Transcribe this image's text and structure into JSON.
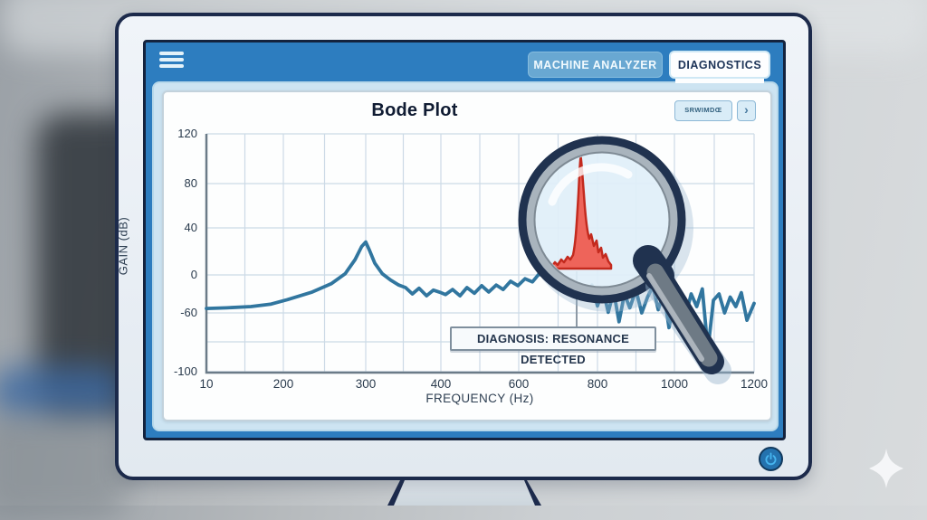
{
  "window": {
    "tabs": [
      {
        "label": "MACHINE ANALYZER",
        "active": false
      },
      {
        "label": "DIAGNOSTICS",
        "active": true
      }
    ]
  },
  "toolbar": {
    "mini_button_label": "SRWIMDŒ",
    "chevron": "›"
  },
  "icons": {
    "menu": "hamburger-menu",
    "power": "power",
    "sparkle": "four-point-sparkle",
    "magnifier": "magnifying-glass",
    "chevron_right": "chevron-right"
  },
  "colors": {
    "screen_blue": "#2d7dbf",
    "bezel_navy": "#1c2a4b",
    "panel_blue": "#cde4f2",
    "curve_blue": "#31769f",
    "alert_red": "#e84a3e",
    "lens_fill": "#e3f1fa"
  },
  "chart_data": {
    "type": "line",
    "title": "Bode Plot",
    "xlabel": "FREQUENCY (Hz)",
    "ylabel": "GAIN (dB)",
    "x_ticks": [
      10,
      200,
      300,
      400,
      600,
      800,
      1000,
      1200
    ],
    "y_ticks": [
      120,
      80,
      40,
      0,
      -60,
      -100
    ],
    "xlim": [
      10,
      1200
    ],
    "ylim": [
      -100,
      120
    ],
    "grid": true,
    "series": [
      {
        "name": "Gain",
        "color": "#31769f",
        "points": [
          [
            10,
            -53
          ],
          [
            60,
            -52
          ],
          [
            120,
            -50
          ],
          [
            170,
            -46
          ],
          [
            205,
            -39
          ],
          [
            235,
            -27
          ],
          [
            258,
            -14
          ],
          [
            275,
            1
          ],
          [
            287,
            13
          ],
          [
            295,
            24
          ],
          [
            300,
            28
          ],
          [
            305,
            21
          ],
          [
            312,
            10
          ],
          [
            322,
            1
          ],
          [
            333,
            -8
          ],
          [
            344,
            -16
          ],
          [
            353,
            -20
          ],
          [
            362,
            -30
          ],
          [
            371,
            -21
          ],
          [
            381,
            -33
          ],
          [
            390,
            -24
          ],
          [
            400,
            -28
          ],
          [
            412,
            -31
          ],
          [
            430,
            -23
          ],
          [
            449,
            -33
          ],
          [
            467,
            -20
          ],
          [
            486,
            -29
          ],
          [
            505,
            -17
          ],
          [
            523,
            -27
          ],
          [
            542,
            -16
          ],
          [
            560,
            -23
          ],
          [
            579,
            -10
          ],
          [
            598,
            -17
          ],
          [
            616,
            -6
          ],
          [
            635,
            -11
          ],
          [
            652,
            1
          ],
          [
            667,
            -3
          ],
          [
            690,
            -12
          ],
          [
            710,
            -5
          ],
          [
            730,
            -15
          ],
          [
            754,
            -20
          ],
          [
            772,
            -37
          ],
          [
            786,
            -16
          ],
          [
            800,
            -49
          ],
          [
            814,
            -23
          ],
          [
            828,
            -59
          ],
          [
            842,
            -26
          ],
          [
            856,
            -66
          ],
          [
            870,
            -30
          ],
          [
            884,
            -52
          ],
          [
            900,
            -24
          ],
          [
            915,
            -60
          ],
          [
            930,
            -35
          ],
          [
            944,
            -18
          ],
          [
            958,
            -55
          ],
          [
            972,
            -28
          ],
          [
            986,
            -70
          ],
          [
            1000,
            -40
          ],
          [
            1014,
            -25
          ],
          [
            1028,
            -62
          ],
          [
            1042,
            -30
          ],
          [
            1056,
            -50
          ],
          [
            1070,
            -22
          ],
          [
            1084,
            -85
          ],
          [
            1098,
            -40
          ],
          [
            1112,
            -30
          ],
          [
            1126,
            -60
          ],
          [
            1140,
            -35
          ],
          [
            1154,
            -50
          ],
          [
            1168,
            -28
          ],
          [
            1182,
            -65
          ],
          [
            1200,
            -45
          ]
        ]
      }
    ],
    "annotations": [
      {
        "type": "magnifier",
        "label": "resonance spike (magnified)",
        "center_hz": 760,
        "color": "#e84a3e"
      },
      {
        "type": "callout",
        "label": "DIAGNOSIS: RESONANCE DETECTED",
        "x_hz": 747
      }
    ]
  }
}
